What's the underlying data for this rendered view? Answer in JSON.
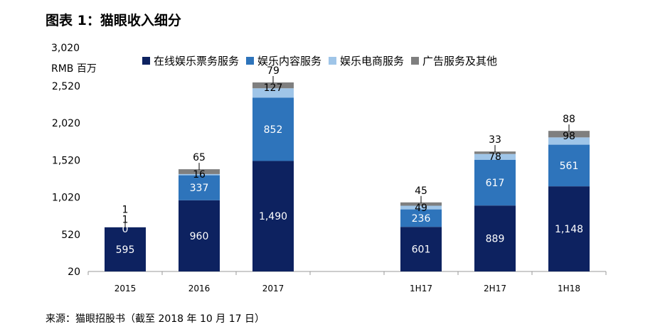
{
  "title": "图表 1：猫眼收入细分",
  "source": "来源：猫眼招股书（截至 2018 年 10 月 17 日）",
  "chart_data": {
    "type": "bar",
    "stacked": true,
    "ylabel": "RMB 百万",
    "categories": [
      "2015",
      "2016",
      "2017",
      "1H17",
      "2H17",
      "1H18"
    ],
    "gap_after_index": 2,
    "y_ticks": [
      "20",
      "520",
      "1,020",
      "1,520",
      "2,020",
      "2,520",
      "3,020"
    ],
    "y_tick_values": [
      20,
      520,
      1020,
      1520,
      2020,
      2520,
      3020
    ],
    "ylim": [
      20,
      3020
    ],
    "legend_position": "top",
    "series": [
      {
        "name": "在线娱乐票务服务",
        "color": "#0d2260",
        "label_color": "#ffffff",
        "values": [
          595,
          960,
          1490,
          601,
          889,
          1148
        ],
        "labels": [
          "595",
          "960",
          "1,490",
          "601",
          "889",
          "1,148"
        ]
      },
      {
        "name": "娱乐内容服务",
        "color": "#2e74bb",
        "label_color": "#ffffff",
        "values": [
          0,
          337,
          852,
          236,
          617,
          561
        ],
        "labels": [
          "0",
          "337",
          "852",
          "236",
          "617",
          "561"
        ]
      },
      {
        "name": "娱乐电商服务",
        "color": "#9fc5e8",
        "label_color": "#000000",
        "values": [
          1,
          16,
          127,
          49,
          78,
          98
        ],
        "labels": [
          "1",
          "16",
          "127",
          "49",
          "78",
          "98"
        ]
      },
      {
        "name": "广告服务及其他",
        "color": "#7f7f7f",
        "label_color": "#000000",
        "values": [
          1,
          65,
          79,
          45,
          33,
          88
        ],
        "labels": [
          "1",
          "65",
          "79",
          "45",
          "33",
          "88"
        ]
      }
    ]
  }
}
